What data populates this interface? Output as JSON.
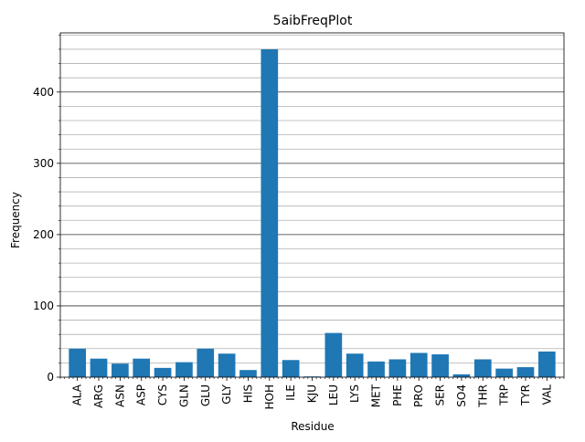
{
  "chart_data": {
    "type": "bar",
    "title": "5aibFreqPlot",
    "xlabel": "Residue",
    "ylabel": "Frequency",
    "categories": [
      "ALA",
      "ARG",
      "ASN",
      "ASP",
      "CYS",
      "GLN",
      "GLU",
      "GLY",
      "HIS",
      "HOH",
      "ILE",
      "KJU",
      "LEU",
      "LYS",
      "MET",
      "PHE",
      "PRO",
      "SER",
      "SO4",
      "THR",
      "TRP",
      "TYR",
      "VAL"
    ],
    "values": [
      40,
      26,
      19,
      26,
      13,
      21,
      40,
      33,
      10,
      460,
      24,
      1,
      62,
      33,
      22,
      25,
      34,
      32,
      4,
      25,
      12,
      14,
      36
    ],
    "ylim": [
      0,
      483
    ],
    "yticks_major": [
      0,
      100,
      200,
      300,
      400
    ],
    "yticks_minor_step": 20,
    "grid": "horizontal major and minor",
    "bar_color": "#1f77b4",
    "major_grid_color": "#333333",
    "minor_grid_color": "#b0b0b0"
  }
}
